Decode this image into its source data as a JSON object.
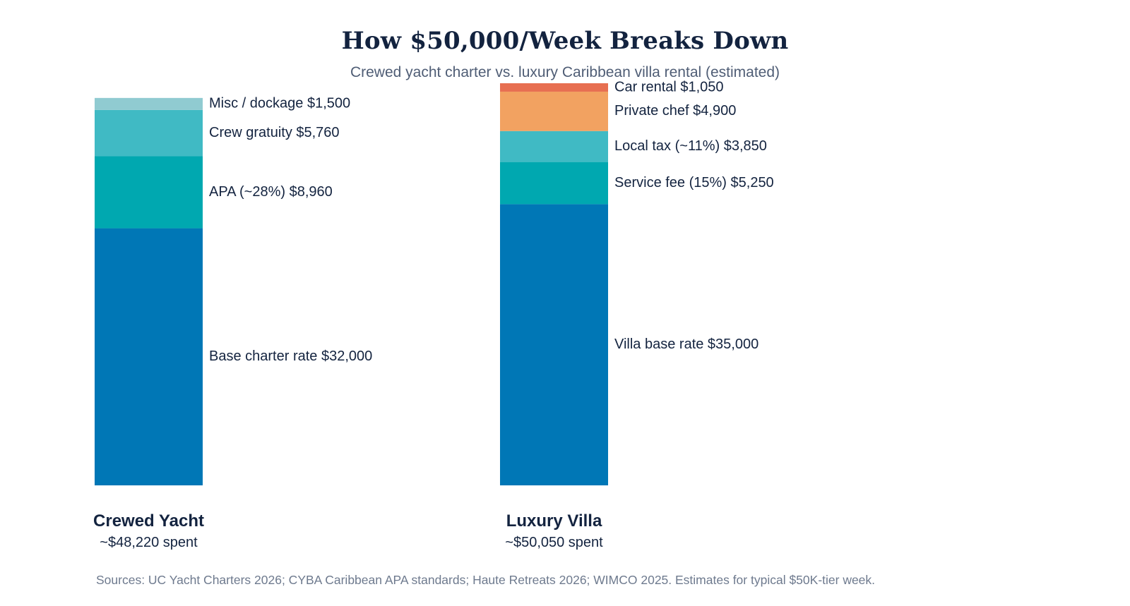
{
  "chart_data": {
    "type": "bar",
    "stacked": true,
    "title": "How $50,000/Week Breaks Down",
    "subtitle": "Crewed yacht charter vs. luxury Caribbean villa rental (estimated)",
    "source": "Sources: UC Yacht Charters 2026; CYBA Caribbean APA standards; Haute Retreats 2026; WIMCO 2025. Estimates for typical $50K-tier week.",
    "ylim": [
      0,
      50050
    ],
    "bars": [
      {
        "name": "Crewed Yacht",
        "total_label": "~$48,220 spent",
        "segments": [
          {
            "label": "Base charter rate $32,000",
            "value": 32000,
            "color": "#0077b6"
          },
          {
            "label": "APA (~28%) $8,960",
            "value": 8960,
            "color": "#00a8b0"
          },
          {
            "label": "Crew gratuity $5,760",
            "value": 5760,
            "color": "#40bac4"
          },
          {
            "label": "Misc / dockage $1,500",
            "value": 1500,
            "color": "#90cbd1"
          }
        ]
      },
      {
        "name": "Luxury Villa",
        "total_label": "~$50,050 spent",
        "segments": [
          {
            "label": "Villa base rate $35,000",
            "value": 35000,
            "color": "#0077b6"
          },
          {
            "label": "Service fee (15%) $5,250",
            "value": 5250,
            "color": "#00a8b0"
          },
          {
            "label": "Local tax (~11%) $3,850",
            "value": 3850,
            "color": "#40bac4"
          },
          {
            "label": "Private chef $4,900",
            "value": 4900,
            "color": "#f2a261"
          },
          {
            "label": "Car rental $1,050",
            "value": 1050,
            "color": "#e76f51"
          }
        ]
      }
    ]
  }
}
